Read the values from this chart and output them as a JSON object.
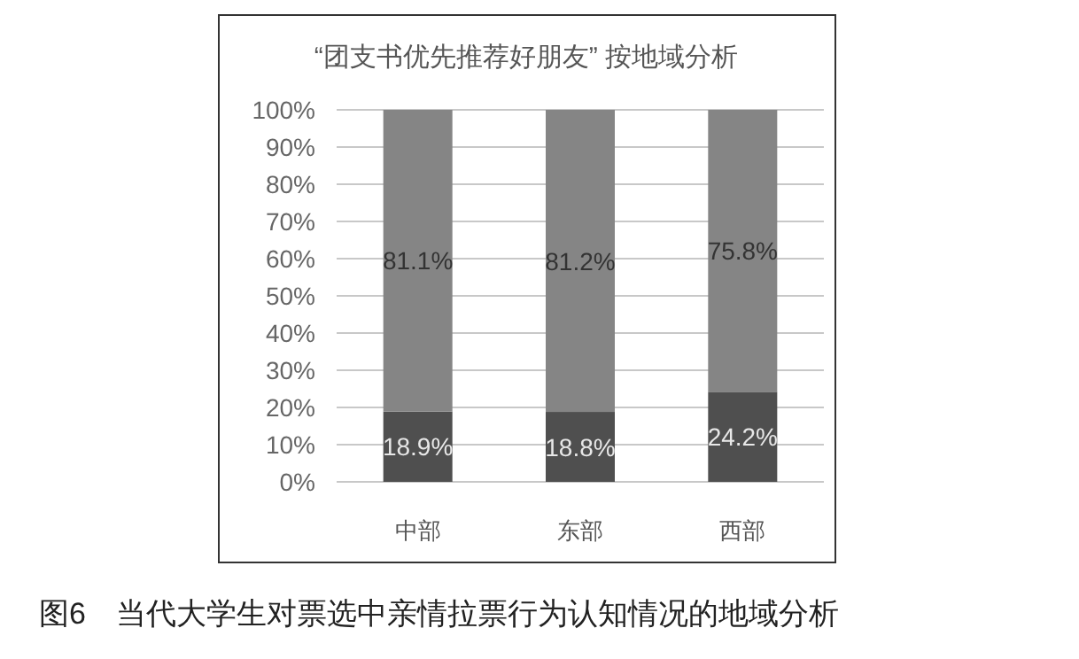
{
  "chart_data": {
    "type": "bar",
    "title": "“团支书优先推荐好朋友” 按地域分析",
    "categories": [
      "中部",
      "东部",
      "西部"
    ],
    "stacked": true,
    "series": [
      {
        "color": "#4f4f4f",
        "values": [
          18.9,
          18.8,
          24.2
        ],
        "value_labels": [
          "18.9%",
          "18.8%",
          "24.2%"
        ]
      },
      {
        "color": "#858585",
        "values": [
          81.1,
          81.2,
          75.8
        ],
        "value_labels": [
          "81.1%",
          "81.2%",
          "75.8%"
        ]
      }
    ],
    "ylim": [
      0,
      100
    ],
    "yticks": [
      {
        "value": 0,
        "label": "0%"
      },
      {
        "value": 10,
        "label": "10%"
      },
      {
        "value": 20,
        "label": "20%"
      },
      {
        "value": 30,
        "label": "30%"
      },
      {
        "value": 40,
        "label": "40%"
      },
      {
        "value": 50,
        "label": "50%"
      },
      {
        "value": 60,
        "label": "60%"
      },
      {
        "value": 70,
        "label": "70%"
      },
      {
        "value": 80,
        "label": "80%"
      },
      {
        "value": 90,
        "label": "90%"
      },
      {
        "value": 100,
        "label": "100%"
      }
    ],
    "grid": "y",
    "annotations": [
      "图6　当代大学生对票选中亲情拉票行为认知情况的地域分析"
    ]
  }
}
